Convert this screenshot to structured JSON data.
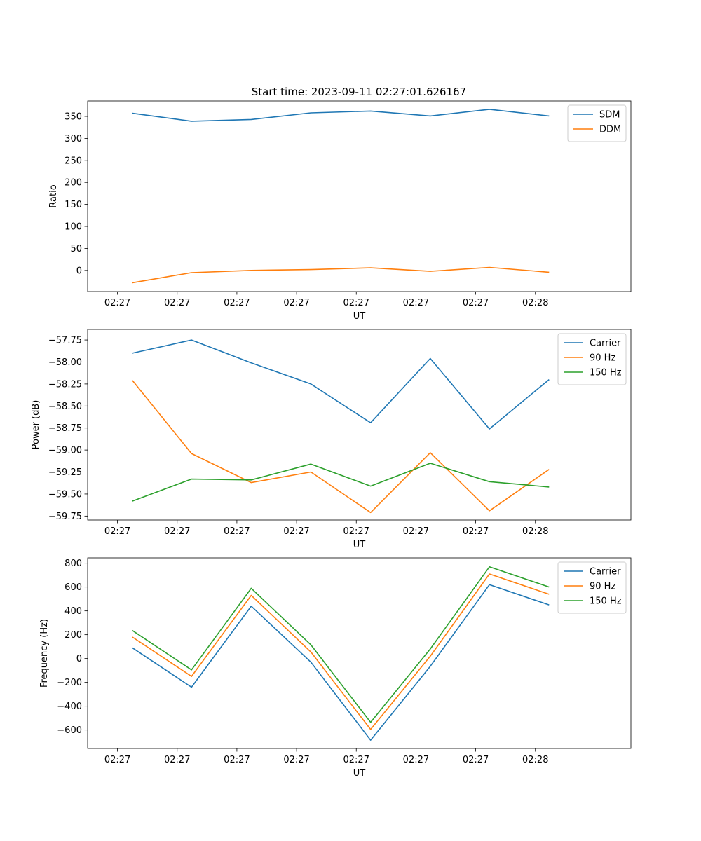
{
  "title": "Start time: 2023-09-11 02:27:01.626167",
  "colors": {
    "c0": "#1f77b4",
    "c1": "#ff7f0e",
    "c2": "#2ca02c"
  },
  "chart_data": [
    {
      "type": "line",
      "title": "Start time: 2023-09-11 02:27:01.626167",
      "xlabel": "UT",
      "ylabel": "Ratio",
      "x_ticks": [
        "02:27",
        "02:27",
        "02:27",
        "02:27",
        "02:27",
        "02:27",
        "02:27",
        "02:28"
      ],
      "y_ticks": [
        0,
        50,
        100,
        150,
        200,
        250,
        300,
        350
      ],
      "y_tick_labels": [
        "0",
        "50",
        "100",
        "150",
        "200",
        "250",
        "300",
        "350"
      ],
      "ylim": [
        -48,
        385
      ],
      "xlim": [
        -0.5,
        8.6
      ],
      "x": [
        0.25,
        1.24,
        2.24,
        3.24,
        4.24,
        5.24,
        6.23,
        7.23
      ],
      "legend_loc": "upper right",
      "series": [
        {
          "name": "SDM",
          "color": "#1f77b4",
          "values": [
            357,
            339,
            343,
            358,
            362,
            351,
            366,
            351
          ]
        },
        {
          "name": "DDM",
          "color": "#ff7f0e",
          "values": [
            -28,
            -5,
            0,
            2,
            6,
            -2,
            7,
            -4
          ]
        }
      ]
    },
    {
      "type": "line",
      "title": "",
      "xlabel": "UT",
      "ylabel": "Power (dB)",
      "x_ticks": [
        "02:27",
        "02:27",
        "02:27",
        "02:27",
        "02:27",
        "02:27",
        "02:27",
        "02:28"
      ],
      "y_ticks": [
        -57.75,
        -58.0,
        -58.25,
        -58.5,
        -58.75,
        -59.0,
        -59.25,
        -59.5,
        -59.75
      ],
      "y_tick_labels": [
        "−57.75",
        "−58.00",
        "−58.25",
        "−58.50",
        "−58.75",
        "−59.00",
        "−59.25",
        "−59.50",
        "−59.75"
      ],
      "ylim": [
        -59.795,
        -57.63
      ],
      "xlim": [
        -0.5,
        8.6
      ],
      "x": [
        0.25,
        1.24,
        2.24,
        3.24,
        4.24,
        5.24,
        6.23,
        7.23
      ],
      "legend_loc": "upper right",
      "series": [
        {
          "name": "Carrier",
          "color": "#1f77b4",
          "values": [
            -57.9,
            -57.75,
            -58.01,
            -58.25,
            -58.69,
            -57.96,
            -58.76,
            -58.2
          ]
        },
        {
          "name": "90 Hz",
          "color": "#ff7f0e",
          "values": [
            -58.21,
            -59.04,
            -59.37,
            -59.25,
            -59.71,
            -59.03,
            -59.69,
            -59.22
          ]
        },
        {
          "name": "150 Hz",
          "color": "#2ca02c",
          "values": [
            -59.58,
            -59.33,
            -59.34,
            -59.16,
            -59.41,
            -59.15,
            -59.36,
            -59.42
          ]
        }
      ]
    },
    {
      "type": "line",
      "title": "",
      "xlabel": "UT",
      "ylabel": "Frequency (Hz)",
      "x_ticks": [
        "02:27",
        "02:27",
        "02:27",
        "02:27",
        "02:27",
        "02:27",
        "02:27",
        "02:28"
      ],
      "y_ticks": [
        -600,
        -400,
        -200,
        0,
        200,
        400,
        600,
        800
      ],
      "y_tick_labels": [
        "−600",
        "−400",
        "−200",
        "0",
        "200",
        "400",
        "600",
        "800"
      ],
      "ylim": [
        -755,
        845
      ],
      "xlim": [
        -0.5,
        8.6
      ],
      "x": [
        0.25,
        1.24,
        2.24,
        3.24,
        4.24,
        5.24,
        6.23,
        7.23
      ],
      "legend_loc": "upper right",
      "series": [
        {
          "name": "Carrier",
          "color": "#1f77b4",
          "values": [
            90,
            -240,
            440,
            -30,
            -685,
            -65,
            620,
            450
          ]
        },
        {
          "name": "90 Hz",
          "color": "#ff7f0e",
          "values": [
            180,
            -150,
            530,
            55,
            -595,
            20,
            710,
            540
          ]
        },
        {
          "name": "150 Hz",
          "color": "#2ca02c",
          "values": [
            235,
            -95,
            590,
            115,
            -535,
            80,
            770,
            600
          ]
        }
      ]
    }
  ]
}
